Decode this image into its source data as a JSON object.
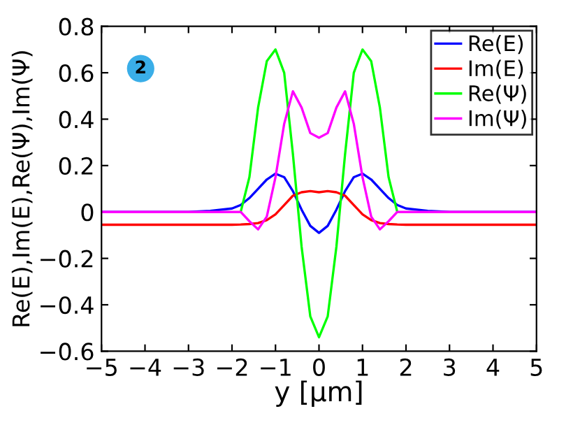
{
  "chart_data": {
    "type": "line",
    "xlabel": "y [µm]",
    "ylabel": "Re(E),Im(E),Re(Ψ),Im(Ψ)",
    "annotations": [
      "2"
    ],
    "x": [
      -5,
      -3,
      -2.5,
      -2,
      -1.8,
      -1.6,
      -1.4,
      -1.2,
      -1,
      -0.8,
      -0.6,
      -0.4,
      -0.2,
      0,
      0.2,
      0.4,
      0.6,
      0.8,
      1,
      1.2,
      1.4,
      1.6,
      1.8,
      2,
      2.5,
      3,
      5
    ],
    "series": [
      {
        "name": "Re(E)",
        "color": "#0000ff",
        "values": [
          0,
          0,
          0.005,
          0.015,
          0.03,
          0.06,
          0.1,
          0.14,
          0.165,
          0.15,
          0.09,
          0.01,
          -0.06,
          -0.09,
          -0.06,
          0.01,
          0.09,
          0.15,
          0.165,
          0.14,
          0.1,
          0.06,
          0.03,
          0.015,
          0.005,
          0,
          0
        ]
      },
      {
        "name": "Im(E)",
        "color": "#ff0000",
        "values": [
          -0.055,
          -0.055,
          -0.055,
          -0.055,
          -0.054,
          -0.052,
          -0.048,
          -0.035,
          -0.01,
          0.03,
          0.07,
          0.085,
          0.09,
          0.085,
          0.09,
          0.085,
          0.07,
          0.03,
          -0.01,
          -0.035,
          -0.048,
          -0.052,
          -0.054,
          -0.055,
          -0.055,
          -0.055,
          -0.055
        ]
      },
      {
        "name": "Re(Ψ)",
        "color": "#00ff00",
        "values": [
          null,
          null,
          null,
          null,
          0,
          0.15,
          0.45,
          0.65,
          0.7,
          0.6,
          0.25,
          -0.15,
          -0.45,
          -0.54,
          -0.45,
          -0.15,
          0.25,
          0.6,
          0.7,
          0.65,
          0.45,
          0.15,
          0,
          null,
          null,
          null,
          null
        ]
      },
      {
        "name": "Im(Ψ)",
        "color": "#ff00ff",
        "values": [
          0,
          0,
          0,
          0,
          0,
          -0.04,
          -0.075,
          -0.02,
          0.15,
          0.38,
          0.52,
          0.45,
          0.34,
          0.32,
          0.34,
          0.45,
          0.52,
          0.38,
          0.15,
          -0.02,
          -0.075,
          -0.04,
          0,
          0,
          0,
          0,
          0
        ]
      }
    ],
    "xlim": [
      -5,
      5
    ],
    "ylim": [
      -0.6,
      0.8
    ],
    "xticks": [
      -5,
      -4,
      -3,
      -2,
      -1,
      0,
      1,
      2,
      3,
      4,
      5
    ],
    "yticks": [
      -0.6,
      -0.4,
      -0.2,
      0,
      0.2,
      0.4,
      0.6,
      0.8
    ],
    "legend": "top right",
    "grid": false
  }
}
